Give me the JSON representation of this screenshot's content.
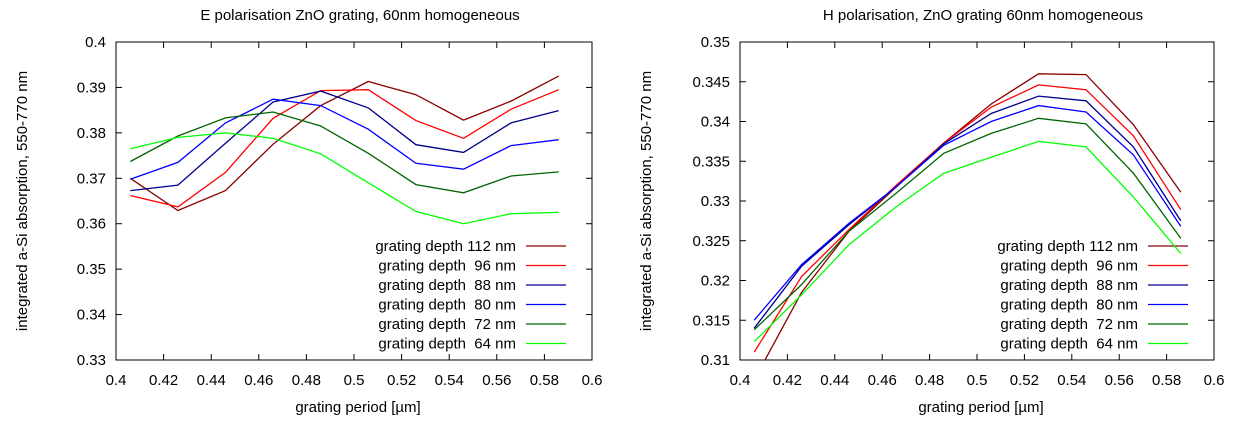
{
  "chart_data": [
    {
      "type": "line",
      "title": "E polarisation ZnO grating, 60nm homogeneous",
      "xlabel": "grating period [µm]",
      "ylabel": "integrated a-Si absorption, 550-770 nm",
      "xlim": [
        0.4,
        0.6
      ],
      "ylim": [
        0.33,
        0.4
      ],
      "xticks": [
        "0.4",
        "0.42",
        "0.44",
        "0.46",
        "0.48",
        "0.5",
        "0.52",
        "0.54",
        "0.56",
        "0.58",
        "0.6"
      ],
      "yticks": [
        "0.33",
        "0.34",
        "0.35",
        "0.36",
        "0.37",
        "0.38",
        "0.39",
        "0.4"
      ],
      "grid": false,
      "legend_position": "bottom-right",
      "x": [
        0.406,
        0.426,
        0.446,
        0.466,
        0.486,
        0.506,
        0.526,
        0.546,
        0.566,
        0.586
      ],
      "series": [
        {
          "name": "grating depth 112 nm",
          "color": "#8b0000",
          "values": [
            0.37,
            0.3629,
            0.3673,
            0.3775,
            0.386,
            0.3913,
            0.3884,
            0.3828,
            0.387,
            0.3925
          ]
        },
        {
          "name": "grating depth  96 nm",
          "color": "#ff0000",
          "values": [
            0.3662,
            0.3637,
            0.3713,
            0.3832,
            0.3893,
            0.3895,
            0.3827,
            0.3788,
            0.3852,
            0.3895
          ]
        },
        {
          "name": "grating depth  88 nm",
          "color": "#00008b",
          "values": [
            0.3673,
            0.3685,
            0.3777,
            0.3868,
            0.3892,
            0.3855,
            0.3774,
            0.3757,
            0.3822,
            0.3849
          ]
        },
        {
          "name": "grating depth  80 nm",
          "color": "#0000ff",
          "values": [
            0.3698,
            0.3735,
            0.3822,
            0.3874,
            0.386,
            0.3808,
            0.3733,
            0.372,
            0.3772,
            0.3785
          ]
        },
        {
          "name": "grating depth  72 nm",
          "color": "#006400",
          "values": [
            0.3737,
            0.3793,
            0.3833,
            0.3846,
            0.3815,
            0.3755,
            0.3686,
            0.3668,
            0.3705,
            0.3714
          ]
        },
        {
          "name": "grating depth  64 nm",
          "color": "#00ff00",
          "values": [
            0.3765,
            0.379,
            0.38,
            0.3788,
            0.3754,
            0.369,
            0.3627,
            0.36,
            0.3622,
            0.3625
          ]
        }
      ]
    },
    {
      "type": "line",
      "title": "H polarisation, ZnO grating 60nm homogeneous",
      "xlabel": "grating period [µm]",
      "ylabel": "integrated a-Si absorption, 550-770 nm",
      "xlim": [
        0.4,
        0.6
      ],
      "ylim": [
        0.31,
        0.35
      ],
      "xticks": [
        "0.4",
        "0.42",
        "0.44",
        "0.46",
        "0.48",
        "0.5",
        "0.52",
        "0.54",
        "0.56",
        "0.58",
        "0.6"
      ],
      "yticks": [
        "0.31",
        "0.315",
        "0.32",
        "0.325",
        "0.33",
        "0.335",
        "0.34",
        "0.345",
        "0.35"
      ],
      "grid": false,
      "legend_position": "bottom-right",
      "x": [
        0.406,
        0.426,
        0.446,
        0.466,
        0.486,
        0.506,
        0.526,
        0.546,
        0.566,
        0.586
      ],
      "series": [
        {
          "name": "grating depth 112 nm",
          "color": "#8b0000",
          "values": [
            0.3075,
            0.3185,
            0.3262,
            0.3318,
            0.3373,
            0.3422,
            0.346,
            0.3459,
            0.3396,
            0.3311
          ]
        },
        {
          "name": "grating depth  96 nm",
          "color": "#ff0000",
          "values": [
            0.311,
            0.3205,
            0.3264,
            0.332,
            0.3373,
            0.3418,
            0.3446,
            0.344,
            0.3382,
            0.3289
          ]
        },
        {
          "name": "grating depth  88 nm",
          "color": "#00008b",
          "values": [
            0.314,
            0.3218,
            0.327,
            0.3318,
            0.3372,
            0.341,
            0.3432,
            0.3426,
            0.3368,
            0.3275
          ]
        },
        {
          "name": "grating depth  80 nm",
          "color": "#0000ff",
          "values": [
            0.315,
            0.322,
            0.3272,
            0.3318,
            0.337,
            0.34,
            0.342,
            0.3412,
            0.3358,
            0.3268
          ]
        },
        {
          "name": "grating depth  72 nm",
          "color": "#006400",
          "values": [
            0.3138,
            0.3195,
            0.3262,
            0.331,
            0.336,
            0.3385,
            0.3404,
            0.3397,
            0.3335,
            0.3253
          ]
        },
        {
          "name": "grating depth  64 nm",
          "color": "#00ff00",
          "values": [
            0.3123,
            0.3182,
            0.3245,
            0.3293,
            0.3335,
            0.3355,
            0.3375,
            0.3368,
            0.3305,
            0.3234
          ]
        }
      ]
    }
  ]
}
